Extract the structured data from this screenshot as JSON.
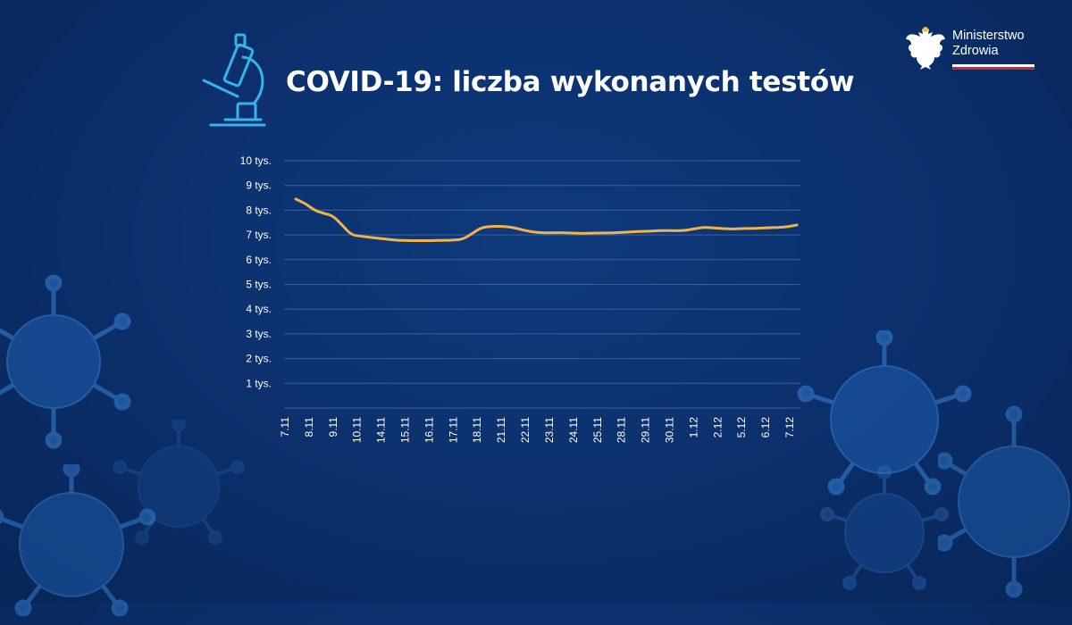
{
  "title": "COVID-19: liczba wykonanych testów",
  "logo": {
    "line1": "Ministerstwo",
    "line2": "Zdrowia"
  },
  "colors": {
    "background": "#0b2f6b",
    "line": "#f2b24c",
    "grid": "#3c5f97",
    "logo_red": "#d4213d",
    "icon": "#36b3ea"
  },
  "icons": [
    "microscope-icon",
    "eagle-emblem-icon",
    "virus-icon"
  ],
  "chart_data": {
    "type": "line",
    "title": "COVID-19: liczba wykonanych testów",
    "xlabel": "",
    "ylabel": "",
    "ylim": [
      0,
      10000
    ],
    "y_ticks": [
      {
        "value": 1000,
        "label": "1 tys."
      },
      {
        "value": 2000,
        "label": "2 tys."
      },
      {
        "value": 3000,
        "label": "3 tys."
      },
      {
        "value": 4000,
        "label": "4 tys."
      },
      {
        "value": 5000,
        "label": "5 tys."
      },
      {
        "value": 6000,
        "label": "6 tys."
      },
      {
        "value": 7000,
        "label": "7 tys."
      },
      {
        "value": 8000,
        "label": "8 tys."
      },
      {
        "value": 9000,
        "label": "9 tys."
      },
      {
        "value": 10000,
        "label": "10 tys."
      }
    ],
    "grid": true,
    "legend": "none",
    "x_tick_labels": [
      "7.11",
      "8.11",
      "9.11",
      "10.11",
      "14.11",
      "15.11",
      "16.11",
      "17.11",
      "18.11",
      "21.11",
      "22.11",
      "23.11",
      "24.11",
      "25.11",
      "28.11",
      "29.11",
      "30.11",
      "1.12",
      "2.12",
      "5.12",
      "6.12",
      "7.12"
    ],
    "series": [
      {
        "values": [
          8450,
          8280,
          8000,
          7870,
          7780,
          7400,
          7000,
          6950,
          6900,
          6860,
          6820,
          6780,
          6770,
          6770,
          6770,
          6770,
          6780,
          6790,
          6820,
          7050,
          7300,
          7340,
          7350,
          7330,
          7250,
          7150,
          7100,
          7080,
          7090,
          7090,
          7070,
          7060,
          7070,
          7080,
          7080,
          7100,
          7120,
          7140,
          7150,
          7170,
          7180,
          7170,
          7180,
          7250,
          7310,
          7280,
          7260,
          7240,
          7260,
          7260,
          7270,
          7290,
          7300,
          7330,
          7400
        ]
      }
    ]
  }
}
